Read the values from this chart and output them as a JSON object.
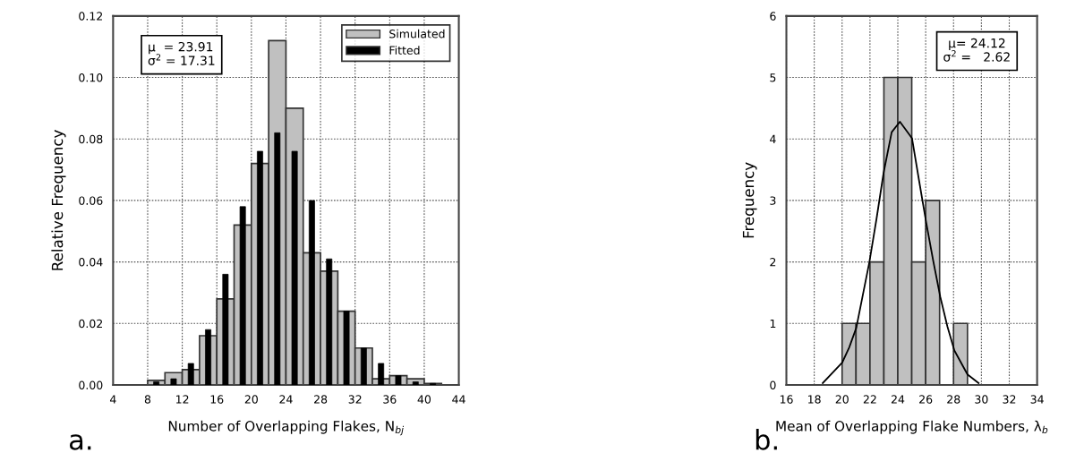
{
  "chart_data": [
    {
      "type": "histogram",
      "xlabel": "Number of Overlapping Flakes, N$_{bj}$",
      "ylabel": "Relative Frequency",
      "bins": [
        8,
        10,
        12,
        14,
        16,
        18,
        20,
        22,
        24,
        26,
        28,
        30,
        32,
        34,
        36,
        38,
        40,
        42
      ],
      "series": [
        {
          "name": "Simulated",
          "type": "histogram",
          "color": "#c0c0c0",
          "values": [
            0.0015,
            0.004,
            0.005,
            0.016,
            0.028,
            0.052,
            0.072,
            0.112,
            0.09,
            0.043,
            0.037,
            0.024,
            0.012,
            0.002,
            0.003,
            0.002,
            0.0005
          ]
        },
        {
          "name": "Fitted",
          "type": "bar",
          "color": "#000000",
          "x": [
            9,
            11,
            13,
            15,
            17,
            19,
            21,
            23,
            25,
            27,
            29,
            31,
            33,
            35,
            37,
            39,
            41
          ],
          "values": [
            0.001,
            0.002,
            0.007,
            0.018,
            0.036,
            0.058,
            0.076,
            0.082,
            0.076,
            0.06,
            0.041,
            0.024,
            0.012,
            0.007,
            0.003,
            0.001,
            0.0005
          ]
        }
      ],
      "xlim": [
        4,
        44
      ],
      "xticks": [
        4,
        8,
        12,
        16,
        20,
        24,
        28,
        32,
        36,
        40,
        44
      ],
      "ylim": [
        0,
        0.12
      ],
      "yticks": [
        {
          "value": 0,
          "label": "0.00"
        },
        {
          "value": 0.02,
          "label": "0.02"
        },
        {
          "value": 0.04,
          "label": "0.04"
        },
        {
          "value": 0.06,
          "label": "0.06"
        },
        {
          "value": 0.08,
          "label": "0.08"
        },
        {
          "value": 0.1,
          "label": "0.10"
        },
        {
          "value": 0.12,
          "label": "0.12"
        }
      ],
      "grid": true,
      "legend": "top right",
      "annotations": [
        "μ  = 23.91\nσ$^{2}$ = 17.31",
        "a."
      ]
    },
    {
      "type": "histogram",
      "xlabel": "Mean of Overlapping Flake Numbers, λ$_{b}$",
      "ylabel": "Frequency",
      "bins": [
        20,
        21,
        22,
        23,
        24,
        25,
        26,
        27,
        28,
        29
      ],
      "series": [
        {
          "type": "histogram",
          "color": "#c0c0c0",
          "values": [
            1,
            1,
            2,
            5,
            5,
            2,
            3,
            0,
            1
          ]
        },
        {
          "type": "line",
          "color": "#000000",
          "x": [
            18.61,
            20.0,
            20.51,
            21.02,
            21.96,
            22.47,
            22.98,
            23.56,
            24.15,
            25.02,
            25.52,
            26.03,
            26.54,
            27.05,
            27.56,
            28.06,
            29.0,
            29.8
          ],
          "values": [
            0.03,
            0.36,
            0.61,
            0.93,
            2.0,
            2.7,
            3.45,
            4.11,
            4.28,
            4.01,
            3.33,
            2.65,
            2.02,
            1.43,
            0.95,
            0.56,
            0.17,
            0.03
          ]
        }
      ],
      "xlim": [
        16,
        34
      ],
      "xticks": [
        16,
        18,
        20,
        22,
        24,
        26,
        28,
        30,
        32,
        34
      ],
      "ylim": [
        0,
        6
      ],
      "yticks": [
        0,
        1,
        2,
        3,
        4,
        5,
        6
      ],
      "grid": true,
      "annotations": [
        "μ= 24.12\nσ$^{2}$ =   2.62",
        "b."
      ]
    }
  ]
}
